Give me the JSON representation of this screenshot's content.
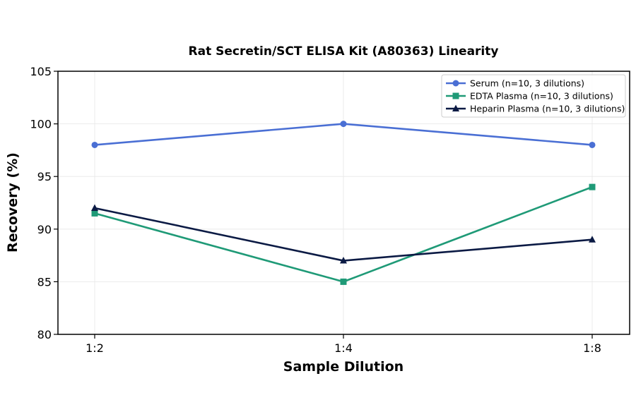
{
  "chart_data": {
    "type": "line",
    "title": "Rat Secretin/SCT ELISA Kit (A80363) Linearity",
    "xlabel": "Sample Dilution",
    "ylabel": "Recovery (%)",
    "categories": [
      "1:2",
      "1:4",
      "1:8"
    ],
    "ylim": [
      80,
      105
    ],
    "yticks": [
      80,
      85,
      90,
      95,
      100,
      105
    ],
    "grid": true,
    "legend_position": "top-right",
    "series": [
      {
        "name": "Serum (n=10, 3 dilutions)",
        "values": [
          98,
          100,
          98
        ],
        "color": "#4a6fd4",
        "marker": "circle"
      },
      {
        "name": "EDTA Plasma (n=10, 3 dilutions)",
        "values": [
          91.5,
          85,
          94
        ],
        "color": "#1f9a77",
        "marker": "square"
      },
      {
        "name": "Heparin Plasma (n=10, 3 dilutions)",
        "values": [
          92,
          87,
          89
        ],
        "color": "#0b1a44",
        "marker": "triangle"
      }
    ]
  }
}
